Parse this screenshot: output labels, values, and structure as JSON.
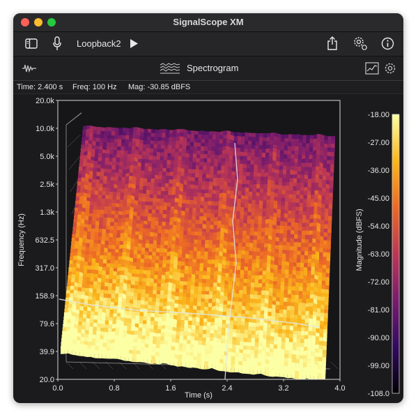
{
  "window": {
    "title": "SignalScope XM"
  },
  "toolbar": {
    "source_label": "Loopback2",
    "icons": [
      "sidebar-icon",
      "microphone-icon",
      "play-icon",
      "share-icon",
      "settings-gear-icon",
      "info-icon"
    ]
  },
  "subbar": {
    "view_label": "Spectrogram",
    "icons": [
      "waveform-icon",
      "spectrogram-icon",
      "graph-icon",
      "gear-icon"
    ]
  },
  "readout": {
    "time": "Time: 2.400 s",
    "freq": "Freq: 100 Hz",
    "mag": "Mag: -30.85 dBFS"
  },
  "chart_data": {
    "type": "heatmap",
    "style": "3d-waterfall spectrogram",
    "xlabel": "Time (s)",
    "ylabel": "Frequency (Hz)",
    "colorbar_label": "Magnitude (dBFS)",
    "x_ticks": [
      "0.0",
      "0.8",
      "1.6",
      "2.4",
      "3.2",
      "4.0"
    ],
    "y_ticks": [
      "20.0k",
      "10.0k",
      "5.0k",
      "2.5k",
      "1.3k",
      "632.5",
      "317.0",
      "158.9",
      "79.6",
      "39.9",
      "20.0"
    ],
    "colorbar_ticks": [
      "-18.00",
      "-27.00",
      "-36.00",
      "-45.00",
      "-54.00",
      "-63.00",
      "-72.00",
      "-81.00",
      "-90.00",
      "-99.00",
      "-108.0"
    ],
    "xlim": [
      0.0,
      4.0
    ],
    "ylim_hz": [
      20.0,
      20000.0
    ],
    "zlim_dbfs": [
      -108.0,
      -18.0
    ],
    "y_scale": "log",
    "colormap": [
      "#000004",
      "#320a5e",
      "#781c6d",
      "#bc3754",
      "#ed6925",
      "#fbb61a",
      "#fcffa4"
    ],
    "cursor": {
      "time_s": 2.4,
      "freq_hz": 100
    }
  }
}
